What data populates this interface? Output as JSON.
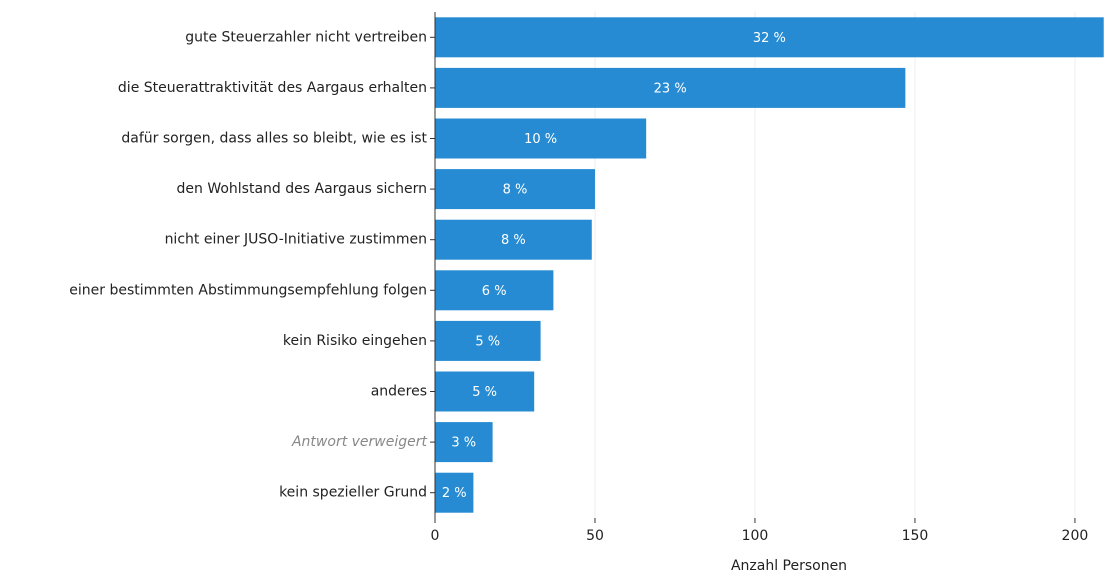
{
  "chart_data": {
    "type": "barh",
    "categories": [
      "gute Steuerzahler nicht vertreiben",
      "die Steuerattraktivität des Aargaus erhalten",
      "dafür sorgen, dass alles so bleibt, wie es ist",
      "den Wohlstand des Aargaus sichern",
      "nicht einer JUSO-Initiative zustimmen",
      "einer bestimmten Abstimmungsempfehlung folgen",
      "kein Risiko eingehen",
      "anderes",
      "Antwort verweigert",
      "kein spezieller Grund"
    ],
    "values": [
      209,
      147,
      66,
      50,
      49,
      37,
      33,
      31,
      18,
      12
    ],
    "value_labels": [
      "32 %",
      "23 %",
      "10 %",
      "8 %",
      "8 %",
      "6 %",
      "5 %",
      "5 %",
      "3 %",
      "2 %"
    ],
    "color": "#268bd2",
    "xlim": [
      0,
      209.4
    ],
    "xticks": [
      0,
      50,
      100,
      150,
      200
    ],
    "xlabel": "Anzahl Personen",
    "grid": true
  }
}
